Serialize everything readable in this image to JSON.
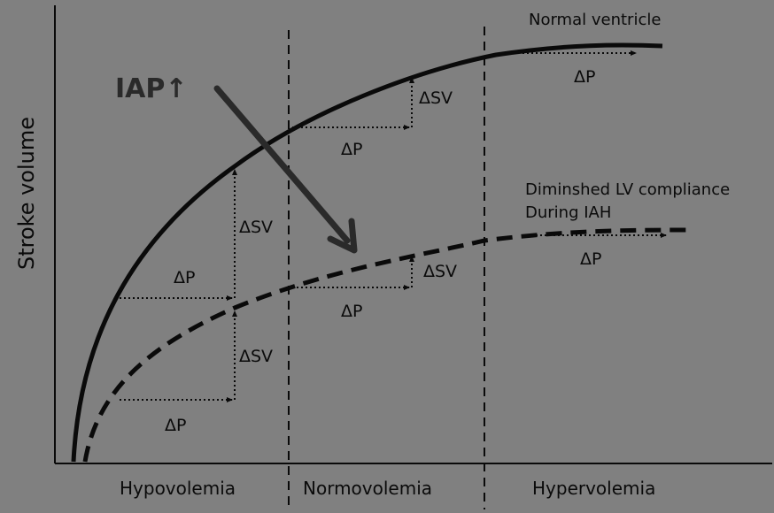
{
  "axis": {
    "y_label": "Stroke volume"
  },
  "regions": [
    {
      "id": "hypo",
      "label": "Hypovolemia"
    },
    {
      "id": "normo",
      "label": "Normovolemia"
    },
    {
      "id": "hyper",
      "label": "Hypervolemia"
    }
  ],
  "curves": {
    "normal": {
      "label": "Normal ventricle"
    },
    "diminished": {
      "label_line1": "Diminshed LV compliance",
      "label_line2": "During IAH"
    }
  },
  "iap": {
    "label": "IAP↑"
  },
  "annotations": {
    "delta_p": "ΔP",
    "delta_sv": "ΔSV"
  },
  "colors": {
    "background": "#808080",
    "ink": "#0a0a0a",
    "arrow": "#2a2a2a"
  }
}
